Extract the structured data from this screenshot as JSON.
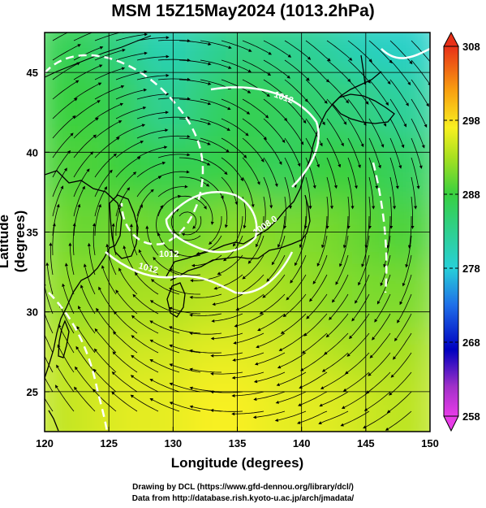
{
  "title": "MSM 15Z15May2024 (1013.2hPa)",
  "x_axis": {
    "label": "Longitude (degrees)",
    "ticks": [
      "120",
      "125",
      "130",
      "135",
      "140",
      "145",
      "150"
    ]
  },
  "y_axis": {
    "label": "Latitude  (degrees)",
    "ticks": [
      "25",
      "30",
      "35",
      "40",
      "45"
    ]
  },
  "colorbar": {
    "ticks": [
      "308",
      "298",
      "288",
      "278",
      "268",
      "258"
    ],
    "min": 258,
    "max": 308
  },
  "contour_labels": [
    "1012",
    "1008.0",
    "1012",
    "1012"
  ],
  "credits": {
    "line1": "Drawing by DCL (https://www.gfd-dennou.org/library/dcl/)",
    "line2": "Data from http://database.rish.kyoto-u.ac.jp/arch/jmadata/"
  },
  "chart_data": {
    "type": "heatmap",
    "title": "MSM 15Z15May2024 (1013.2hPa)",
    "xlabel": "Longitude (degrees)",
    "ylabel": "Latitude  (degrees)",
    "xlim": [
      120,
      150
    ],
    "ylim": [
      22.5,
      47.5
    ],
    "xticks": [
      120,
      125,
      130,
      135,
      140,
      145,
      150
    ],
    "yticks": [
      25,
      30,
      35,
      40,
      45
    ],
    "grid": true,
    "colorbar_range": [
      258,
      308
    ],
    "colorbar_ticks": [
      258,
      268,
      278,
      288,
      298,
      308
    ],
    "temperature_field_K": {
      "lat_centers": [
        46,
        42,
        38,
        34,
        30,
        26,
        23
      ],
      "lon_centers": [
        121.5,
        124.5,
        127.5,
        130.5,
        133.5,
        136.5,
        139.5,
        142.5,
        145.5,
        148.5
      ],
      "values": [
        [
          287,
          286,
          283,
          280,
          282,
          284,
          283,
          282,
          280,
          279
        ],
        [
          288,
          288,
          286,
          282,
          285,
          287,
          286,
          285,
          284,
          282
        ],
        [
          289,
          289,
          288,
          287,
          287,
          288,
          286,
          288,
          288,
          286
        ],
        [
          291,
          290,
          291,
          290,
          291,
          292,
          291,
          291,
          290,
          289
        ],
        [
          292,
          292,
          293,
          293,
          294,
          294,
          293,
          292,
          291,
          291
        ],
        [
          294,
          294,
          295,
          295,
          296,
          296,
          295,
          294,
          293,
          293
        ],
        [
          294,
          295,
          296,
          296,
          297,
          297,
          296,
          296,
          295,
          294
        ]
      ]
    },
    "pressure_contours_hPa": [
      1008.0,
      1012
    ]
  }
}
